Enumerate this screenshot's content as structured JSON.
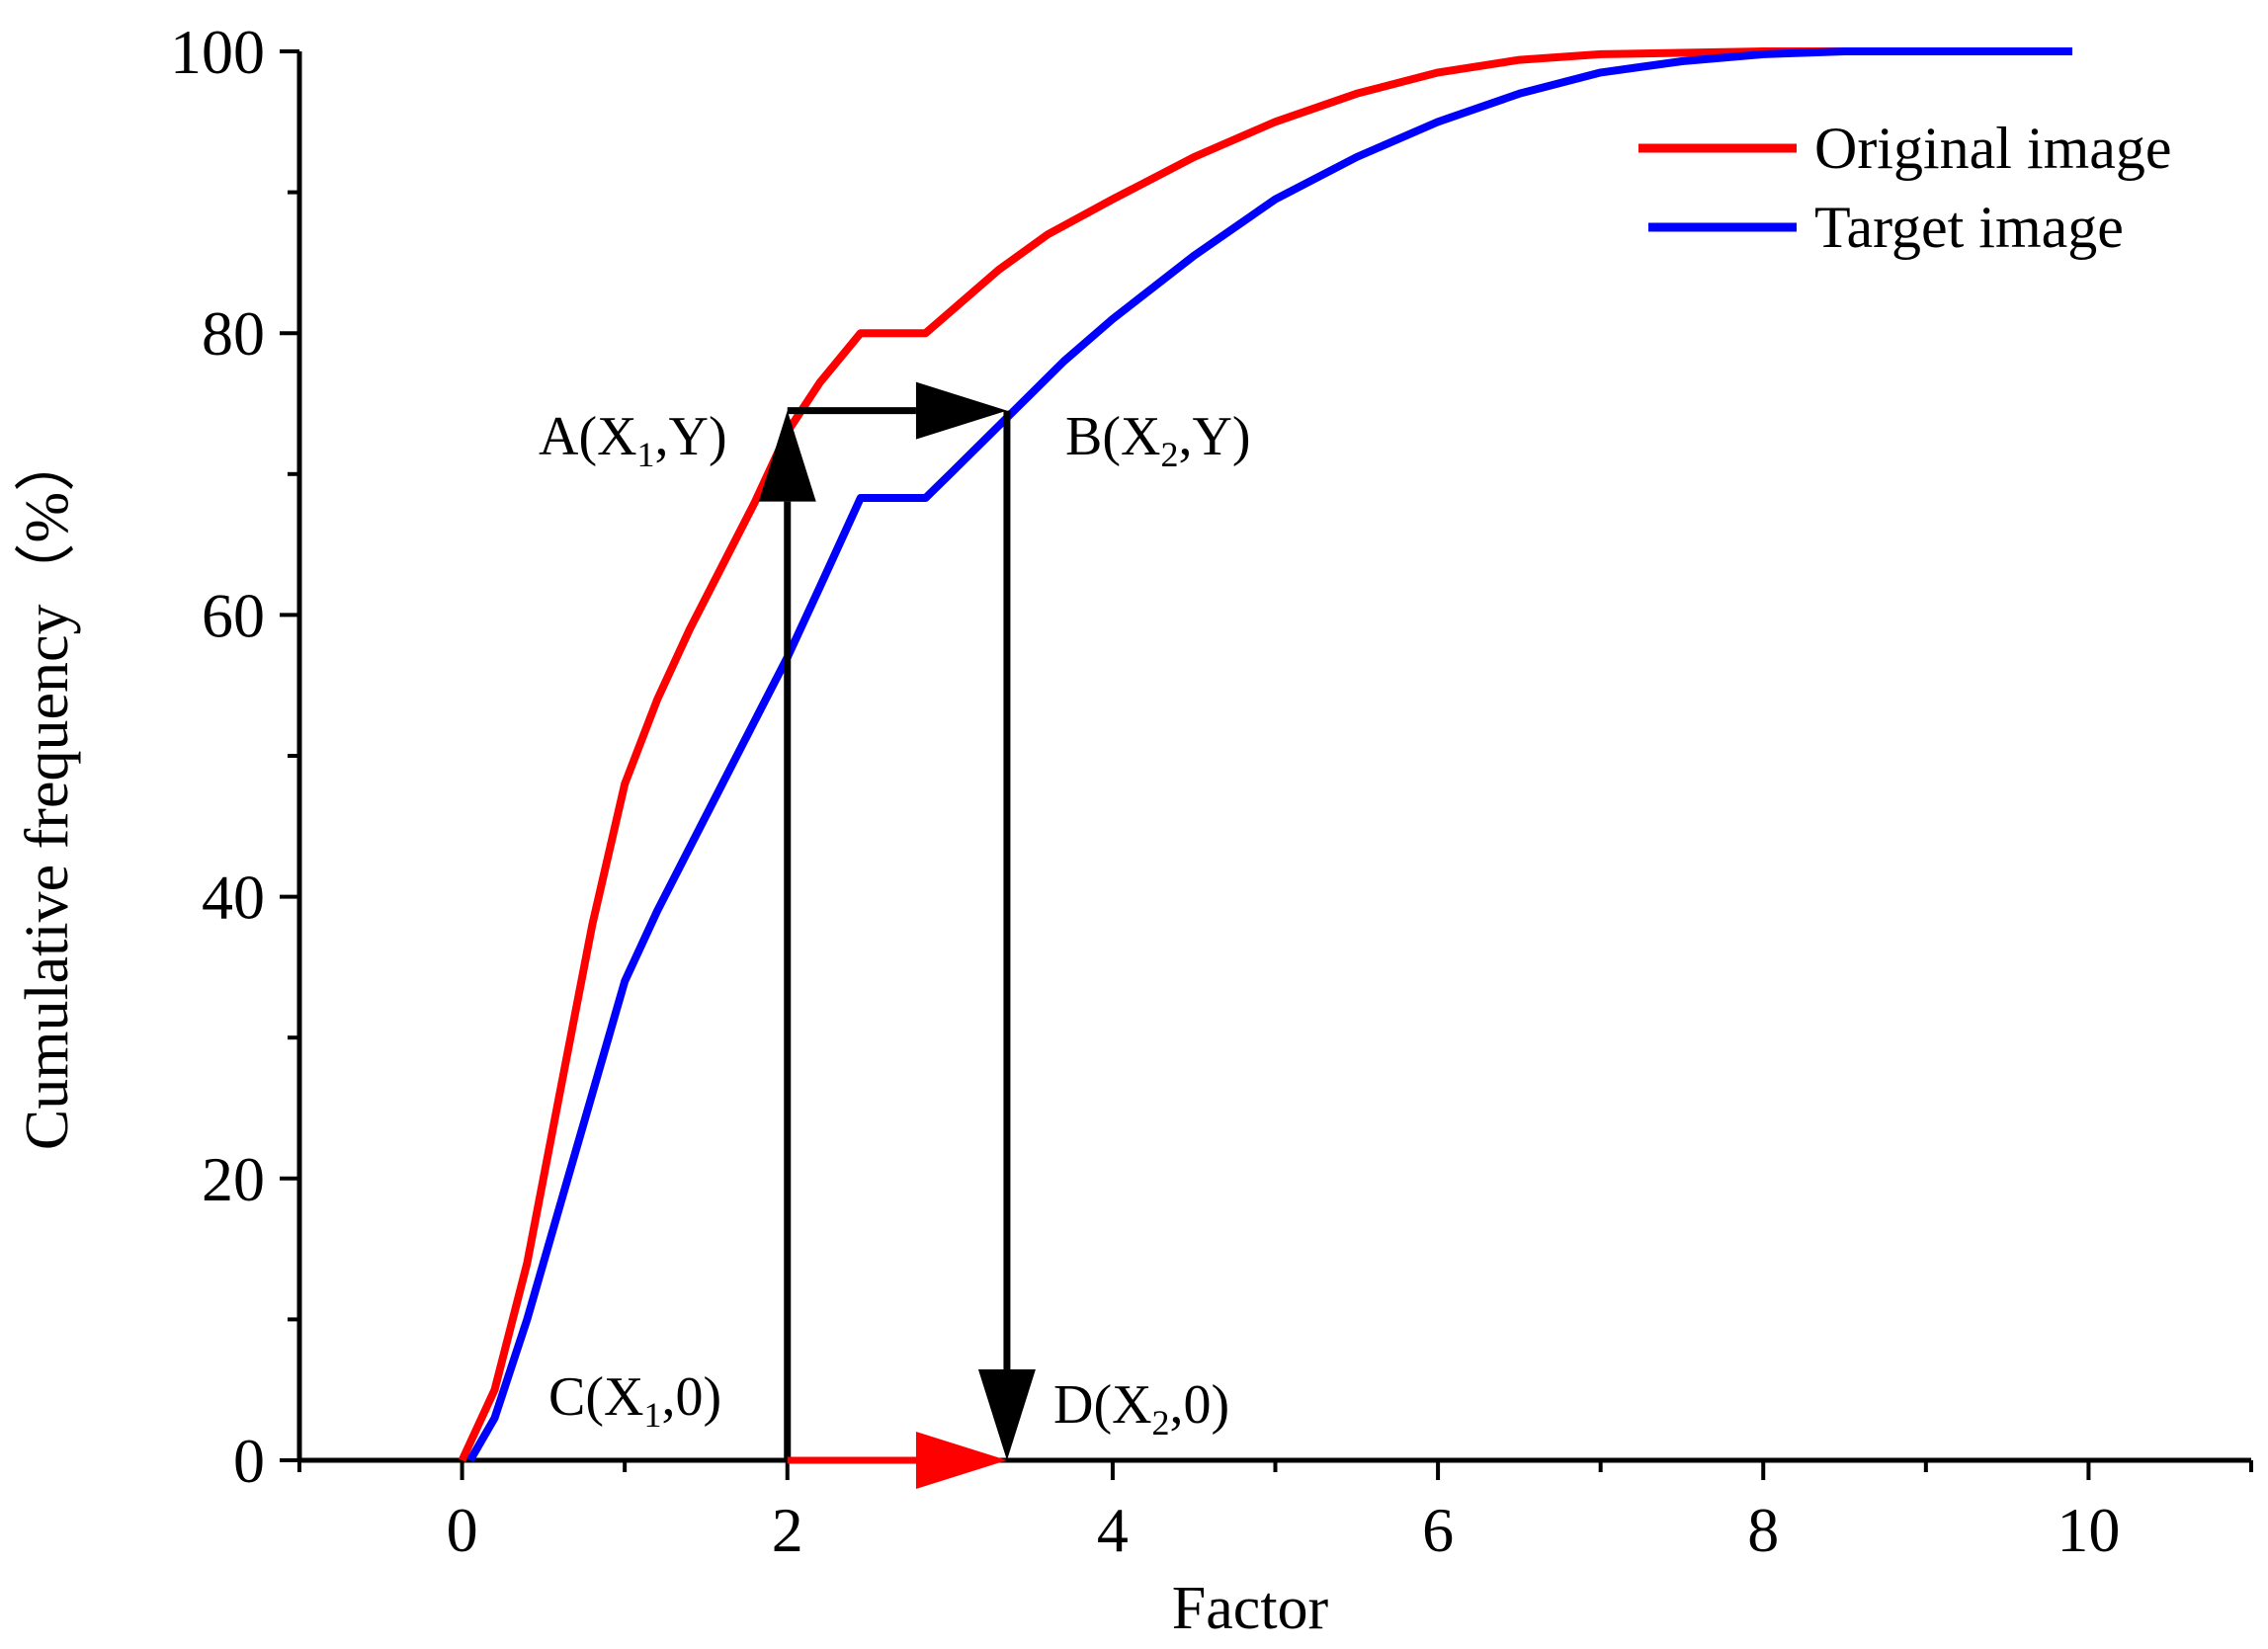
{
  "chart_data": {
    "type": "line",
    "xlabel": "Factor",
    "ylabel": "Cumulative frequency（%）",
    "xlim": [
      -1,
      11
    ],
    "ylim": [
      0,
      100
    ],
    "x_ticks": [
      0,
      2,
      4,
      6,
      8,
      10
    ],
    "y_ticks": [
      0,
      20,
      40,
      60,
      80,
      100
    ],
    "grid": false,
    "legend_position": "top-right",
    "series": [
      {
        "name": "Original image",
        "color": "#ff0000",
        "points": [
          [
            0.0,
            0
          ],
          [
            0.2,
            5
          ],
          [
            0.4,
            14
          ],
          [
            0.6,
            26
          ],
          [
            0.8,
            38
          ],
          [
            1.0,
            48
          ],
          [
            1.2,
            54
          ],
          [
            1.4,
            59
          ],
          [
            1.6,
            63.5
          ],
          [
            1.8,
            68
          ],
          [
            2.0,
            73
          ],
          [
            2.2,
            76.5
          ],
          [
            2.45,
            80
          ],
          [
            2.85,
            80
          ],
          [
            3.0,
            81.5
          ],
          [
            3.3,
            84.5
          ],
          [
            3.6,
            87
          ],
          [
            4.0,
            89.5
          ],
          [
            4.5,
            92.5
          ],
          [
            5.0,
            95
          ],
          [
            5.5,
            97
          ],
          [
            6.0,
            98.5
          ],
          [
            6.5,
            99.4
          ],
          [
            7.0,
            99.8
          ],
          [
            8.0,
            100
          ],
          [
            9.9,
            100
          ]
        ]
      },
      {
        "name": "Target image",
        "color": "#0000ff",
        "points": [
          [
            0.05,
            0
          ],
          [
            0.2,
            3
          ],
          [
            0.4,
            10
          ],
          [
            0.6,
            18
          ],
          [
            0.8,
            26
          ],
          [
            1.0,
            34
          ],
          [
            1.2,
            39
          ],
          [
            1.4,
            43.5
          ],
          [
            1.6,
            48
          ],
          [
            1.8,
            52.5
          ],
          [
            2.0,
            57
          ],
          [
            2.2,
            62
          ],
          [
            2.45,
            68.3
          ],
          [
            2.85,
            68.3
          ],
          [
            3.0,
            70
          ],
          [
            3.35,
            74
          ],
          [
            3.7,
            78
          ],
          [
            4.0,
            81
          ],
          [
            4.5,
            85.5
          ],
          [
            5.0,
            89.5
          ],
          [
            5.5,
            92.5
          ],
          [
            6.0,
            95
          ],
          [
            6.5,
            97
          ],
          [
            7.0,
            98.5
          ],
          [
            7.5,
            99.3
          ],
          [
            8.0,
            99.8
          ],
          [
            8.5,
            100
          ],
          [
            9.9,
            100
          ]
        ]
      }
    ],
    "annotations": {
      "A": {
        "text": "A(X",
        "sub": "1",
        "tail": ",Y)",
        "x": 2.0,
        "y": 74.5
      },
      "B": {
        "text": "B(X",
        "sub": "2",
        "tail": ",Y)",
        "x": 3.35,
        "y": 74.5
      },
      "C": {
        "text": "C(X",
        "sub": "1",
        "tail": ",0)",
        "x": 2.0,
        "y": 0
      },
      "D": {
        "text": "D(X",
        "sub": "2",
        "tail": ",0)",
        "x": 3.35,
        "y": 0
      }
    },
    "arrows": [
      {
        "name": "arrow-c-to-a",
        "from": [
          2.0,
          0
        ],
        "to": [
          2.0,
          74.5
        ],
        "color": "#000000"
      },
      {
        "name": "arrow-a-to-b",
        "from": [
          2.0,
          74.5
        ],
        "to": [
          3.35,
          74.5
        ],
        "color": "#000000"
      },
      {
        "name": "arrow-b-to-d",
        "from": [
          3.35,
          74.5
        ],
        "to": [
          3.35,
          0
        ],
        "color": "#000000"
      },
      {
        "name": "arrow-c-to-d",
        "from": [
          2.0,
          0
        ],
        "to": [
          3.35,
          0
        ],
        "color": "#ff0000"
      }
    ]
  }
}
